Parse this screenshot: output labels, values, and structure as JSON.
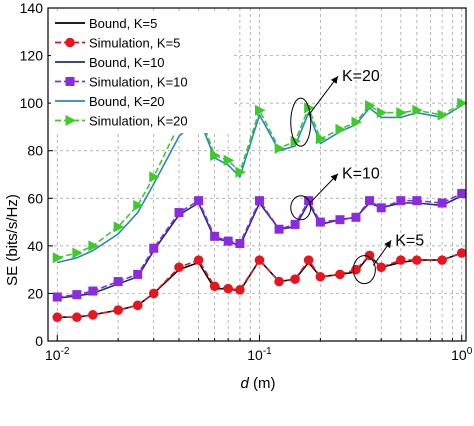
{
  "chart_data": {
    "type": "line",
    "xlabel_prefix": "d",
    "xlabel_suffix": " (m)",
    "ylabel": "SE (bits/s/Hz)",
    "xscale": "log",
    "xlim": [
      0.009,
      1.05
    ],
    "ylim": [
      0,
      140
    ],
    "yticks": [
      0,
      20,
      40,
      60,
      80,
      100,
      120,
      140
    ],
    "xticks": [
      {
        "value": 0.01,
        "base": "10",
        "exp": "-2"
      },
      {
        "value": 0.1,
        "base": "10",
        "exp": "-1"
      },
      {
        "value": 1,
        "base": "10",
        "exp": "0"
      }
    ],
    "grid": true,
    "legend_position": "top-left",
    "x": [
      0.01,
      0.0125,
      0.015,
      0.02,
      0.025,
      0.03,
      0.04,
      0.05,
      0.06,
      0.07,
      0.08,
      0.1,
      0.125,
      0.15,
      0.175,
      0.2,
      0.25,
      0.3,
      0.35,
      0.4,
      0.5,
      0.6,
      0.8,
      1.0
    ],
    "series": [
      {
        "name": "Bound, K=5",
        "color": "#000000",
        "dash": "solid",
        "marker": "none",
        "values": [
          10,
          10,
          11,
          13,
          15,
          20,
          30,
          33,
          22,
          22,
          21,
          34,
          25,
          26,
          33,
          27,
          28,
          29,
          36,
          31,
          33,
          34,
          34,
          37
        ]
      },
      {
        "name": "Simulation, K=5",
        "color": "#e8141e",
        "dash": "dashed",
        "marker": "circle",
        "values": [
          10,
          10,
          11,
          13,
          15,
          20,
          31,
          34,
          23,
          22,
          21.5,
          34,
          25,
          26,
          34,
          27,
          28,
          30,
          36,
          31,
          34,
          34,
          34,
          37
        ]
      },
      {
        "name": "Bound, K=10",
        "color": "#1c2e8c",
        "dash": "solid",
        "marker": "none",
        "values": [
          18,
          19,
          20,
          24,
          27,
          38,
          53,
          58,
          43,
          42,
          40,
          58,
          47,
          48,
          58,
          49,
          51,
          52,
          58,
          56,
          58,
          58,
          57,
          61
        ]
      },
      {
        "name": "Simulation, K=10",
        "color": "#8a2be2",
        "dash": "dashed",
        "marker": "square",
        "values": [
          18.5,
          19.5,
          21,
          25,
          28,
          39,
          54,
          59,
          44,
          42,
          41,
          59,
          47,
          49,
          59,
          50,
          51,
          52,
          59,
          56,
          59,
          59,
          58,
          62
        ]
      },
      {
        "name": "Bound, K=20",
        "color": "#2a86c4",
        "dash": "solid",
        "marker": "none",
        "values": [
          33,
          35,
          38,
          45,
          54,
          66,
          86,
          94,
          77,
          74,
          69,
          95,
          80,
          82,
          96,
          83,
          88,
          91,
          98,
          94,
          94,
          96,
          94,
          99
        ]
      },
      {
        "name": "Simulation, K=20",
        "color": "#3ecb2a",
        "dash": "dashed",
        "marker": "triangle-right",
        "values": [
          35,
          37,
          40,
          48,
          57,
          69,
          91,
          97,
          78,
          76,
          71,
          97,
          81,
          84,
          98,
          85,
          89,
          92,
          99,
          96,
          96,
          97,
          95,
          100
        ]
      }
    ],
    "annotations": [
      {
        "text": "K=20",
        "ell_x": 0.16,
        "ell_y": 92,
        "ell_rx": 10,
        "ell_ry": 24,
        "label_x": 0.3,
        "label_y": 113
      },
      {
        "text": "K=10",
        "ell_x": 0.16,
        "ell_y": 56,
        "ell_rx": 10,
        "ell_ry": 12,
        "label_x": 0.3,
        "label_y": 72
      },
      {
        "text": "K=5",
        "ell_x": 0.33,
        "ell_y": 30,
        "ell_rx": 11,
        "ell_ry": 14,
        "label_x": 0.55,
        "label_y": 44
      }
    ]
  }
}
